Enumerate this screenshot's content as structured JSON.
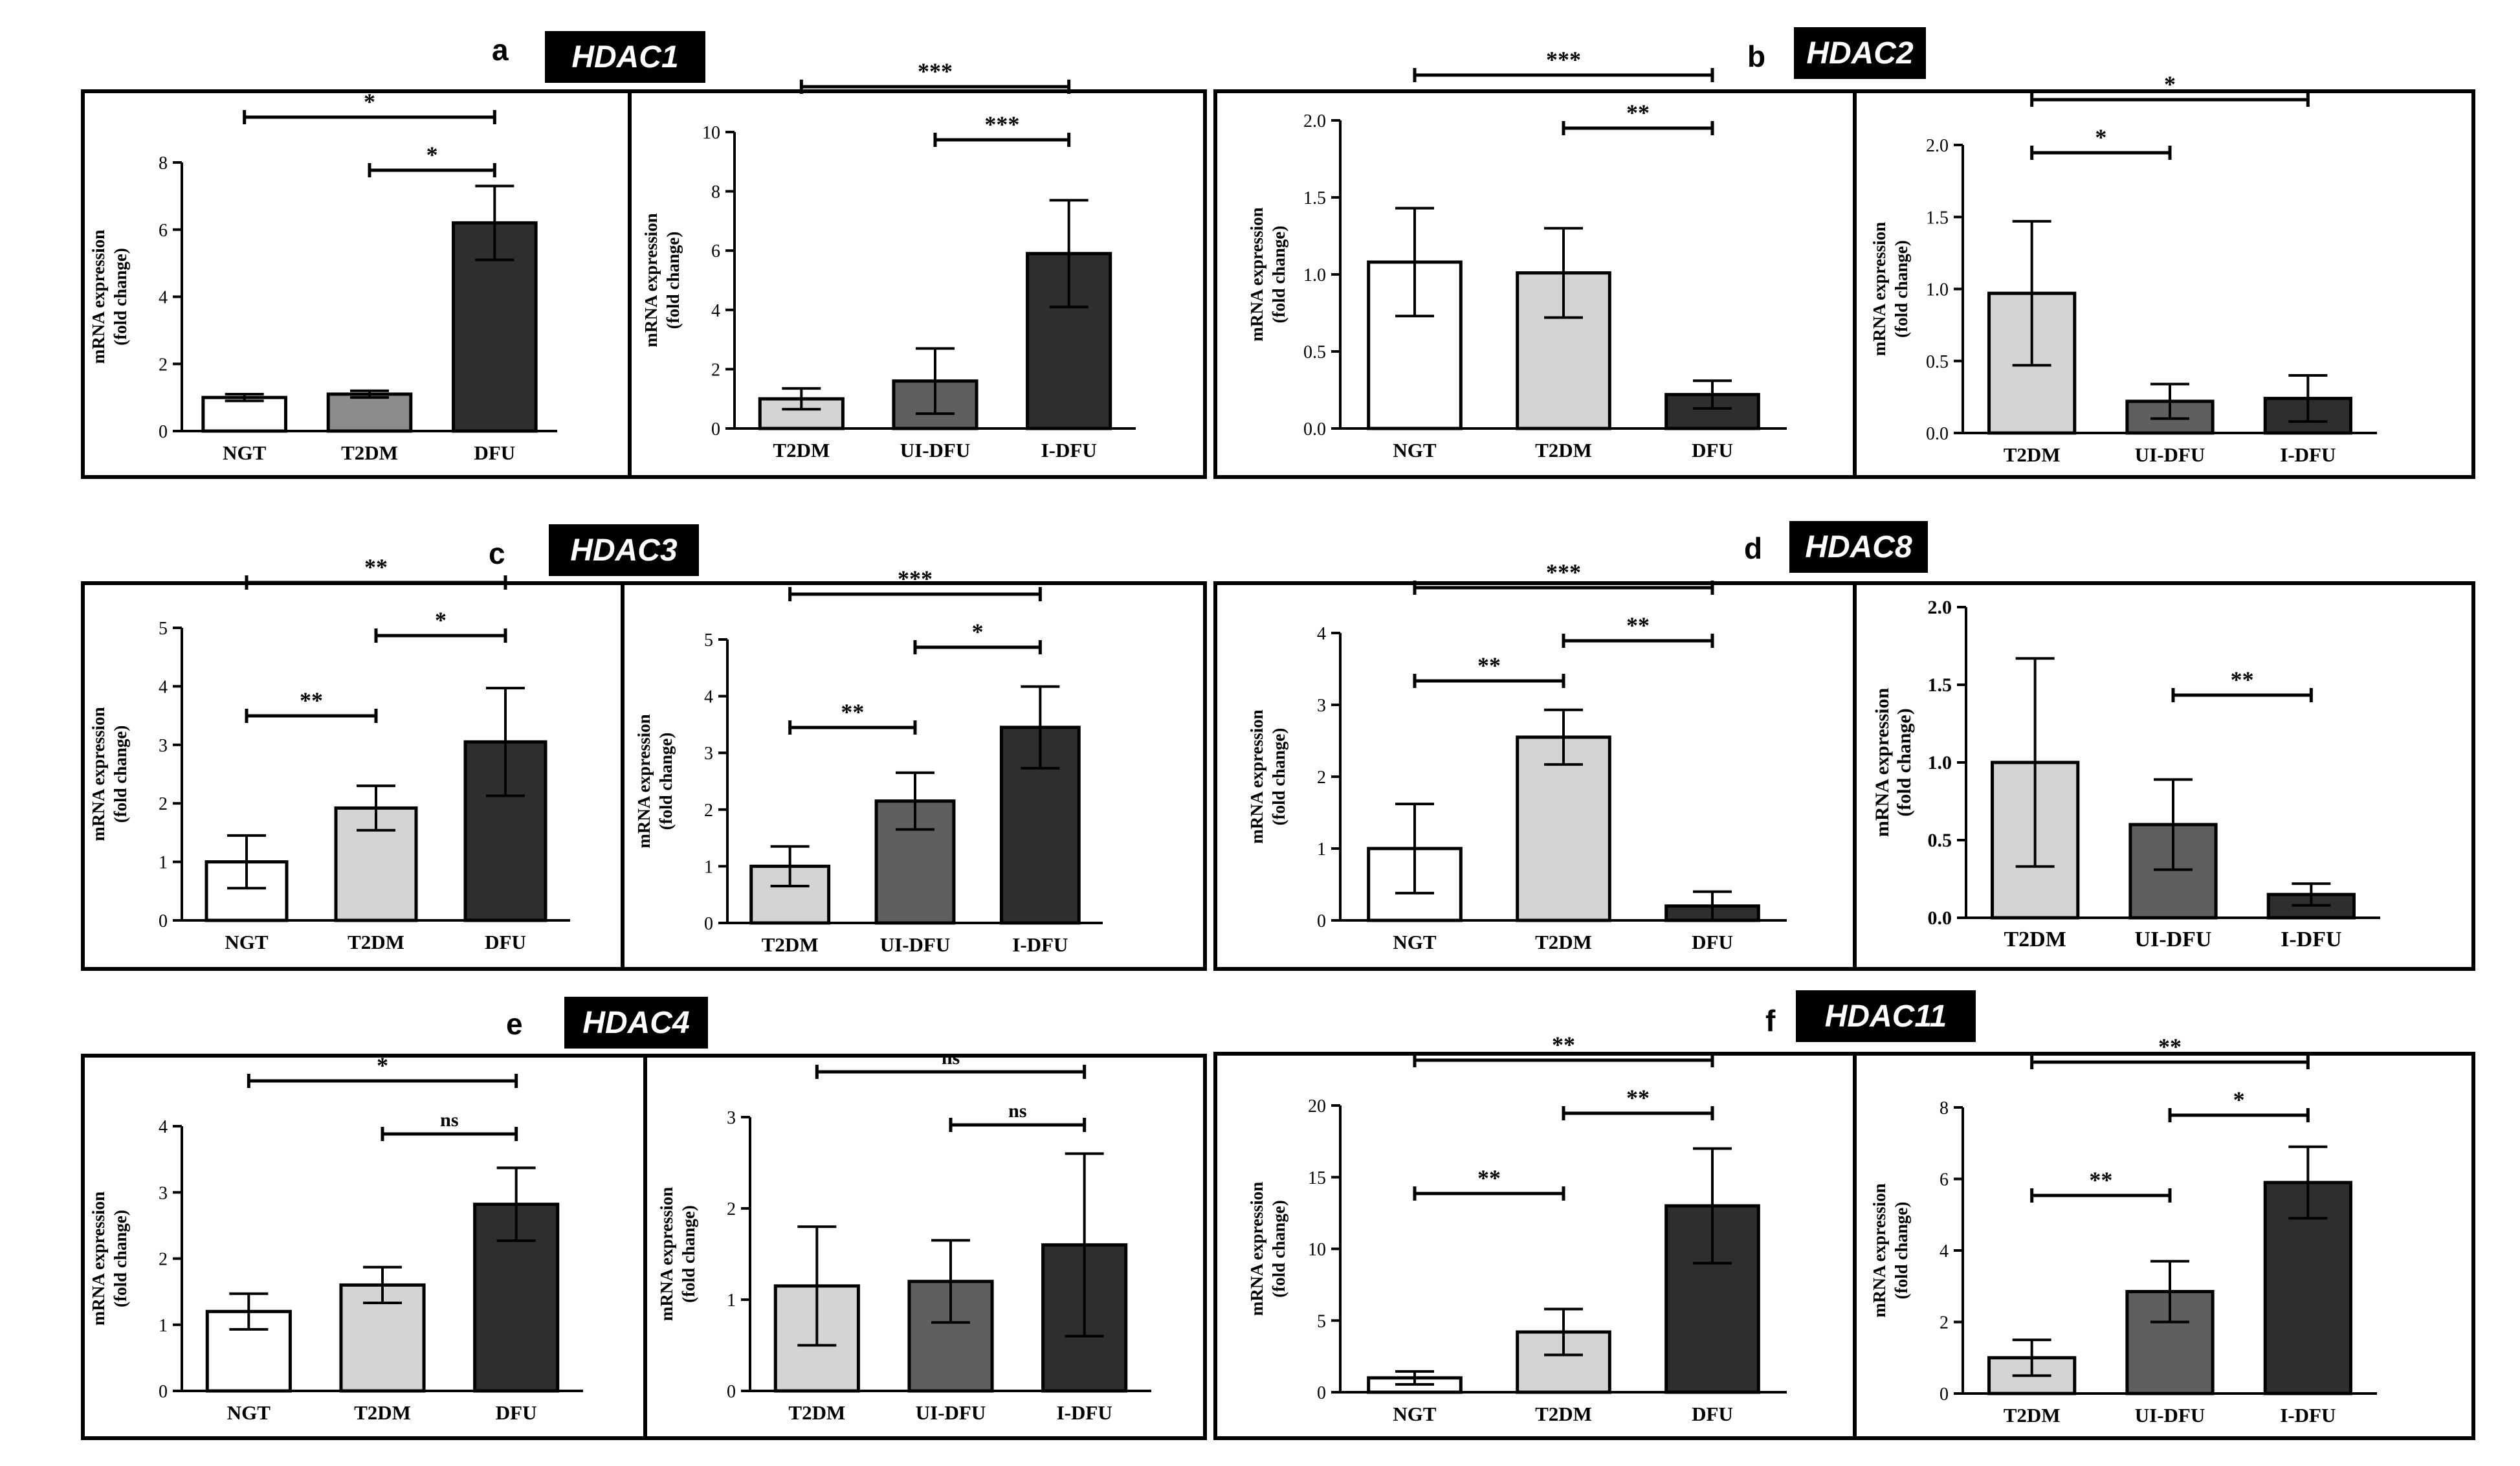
{
  "colors": {
    "white": "#ffffff",
    "light": "#d4d4d4",
    "mid": "#8c8c8c",
    "dark": "#5f5f5f",
    "black": "#2e2e2e"
  },
  "panels": [
    {
      "letter": "a",
      "gene": "HDAC1"
    },
    {
      "letter": "b",
      "gene": "HDAC2"
    },
    {
      "letter": "c",
      "gene": "HDAC3"
    },
    {
      "letter": "d",
      "gene": "HDAC8"
    },
    {
      "letter": "e",
      "gene": "HDAC4"
    },
    {
      "letter": "f",
      "gene": "HDAC11"
    }
  ],
  "chart_data": [
    {
      "id": "a1",
      "type": "bar",
      "ylabel": "mRNA expression",
      "ylabel2": "(fold change)",
      "ylim": [
        0,
        8
      ],
      "yticks": [
        "0",
        "2",
        "4",
        "6",
        "8"
      ],
      "categories": [
        "NGT",
        "T2DM",
        "DFU"
      ],
      "values": [
        1.0,
        1.1,
        6.2
      ],
      "err": [
        0.1,
        0.1,
        1.1
      ],
      "fills": [
        "white",
        "mid",
        "black"
      ],
      "brackets": [
        {
          "from": 0,
          "to": 2,
          "label": "*",
          "level": 0
        },
        {
          "from": 1,
          "to": 2,
          "label": "*",
          "level": 1
        }
      ]
    },
    {
      "id": "a2",
      "type": "bar",
      "ylabel": "mRNA expression",
      "ylabel2": "(fold change)",
      "ylim": [
        0,
        10
      ],
      "yticks": [
        "0",
        "2",
        "4",
        "6",
        "8",
        "10"
      ],
      "categories": [
        "T2DM",
        "UI-DFU",
        "I-DFU"
      ],
      "values": [
        1.0,
        1.6,
        5.9
      ],
      "err": [
        0.35,
        1.1,
        1.8
      ],
      "fills": [
        "light",
        "dark",
        "black"
      ],
      "brackets": [
        {
          "from": 0,
          "to": 2,
          "label": "***",
          "level": 0
        },
        {
          "from": 1,
          "to": 2,
          "label": "***",
          "level": 1
        }
      ]
    },
    {
      "id": "b1",
      "type": "bar",
      "ylabel": "mRNA expression",
      "ylabel2": "(fold change)",
      "ylim": [
        0,
        2.0
      ],
      "yticks": [
        "0.0",
        "0.5",
        "1.0",
        "1.5",
        "2.0"
      ],
      "categories": [
        "NGT",
        "T2DM",
        "DFU"
      ],
      "values": [
        1.08,
        1.01,
        0.22
      ],
      "err": [
        0.35,
        0.29,
        0.09
      ],
      "fills": [
        "white",
        "light",
        "black"
      ],
      "brackets": [
        {
          "from": 0,
          "to": 2,
          "label": "***",
          "level": 0
        },
        {
          "from": 1,
          "to": 2,
          "label": "**",
          "level": 1
        }
      ]
    },
    {
      "id": "b2",
      "type": "bar",
      "ylabel": "mRNA expression",
      "ylabel2": "(fold change)",
      "ylim": [
        0,
        2.0
      ],
      "yticks": [
        "0.0",
        "0.5",
        "1.0",
        "1.5",
        "2.0"
      ],
      "categories": [
        "T2DM",
        "UI-DFU",
        "I-DFU"
      ],
      "values": [
        0.97,
        0.22,
        0.24
      ],
      "err": [
        0.5,
        0.12,
        0.16
      ],
      "fills": [
        "light",
        "dark",
        "black"
      ],
      "brackets": [
        {
          "from": 0,
          "to": 2,
          "label": "*",
          "level": 0
        },
        {
          "from": 0,
          "to": 1,
          "label": "*",
          "level": 1
        }
      ]
    },
    {
      "id": "c1",
      "type": "bar",
      "ylabel": "mRNA expression",
      "ylabel2": "(fold change)",
      "ylim": [
        0,
        5
      ],
      "yticks": [
        "0",
        "1",
        "2",
        "3",
        "4",
        "5"
      ],
      "categories": [
        "NGT",
        "T2DM",
        "DFU"
      ],
      "values": [
        1.0,
        1.92,
        3.05
      ],
      "err": [
        0.45,
        0.38,
        0.92
      ],
      "fills": [
        "white",
        "light",
        "black"
      ],
      "brackets": [
        {
          "from": 0,
          "to": 2,
          "label": "**",
          "level": 0
        },
        {
          "from": 1,
          "to": 2,
          "label": "*",
          "level": 1
        },
        {
          "from": 0,
          "to": 1,
          "label": "**",
          "level": 3
        }
      ]
    },
    {
      "id": "c2",
      "type": "bar",
      "ylabel": "mRNA expression",
      "ylabel2": "(fold change)",
      "ylim": [
        0,
        5
      ],
      "yticks": [
        "0",
        "1",
        "2",
        "3",
        "4",
        "5"
      ],
      "categories": [
        "T2DM",
        "UI-DFU",
        "I-DFU"
      ],
      "values": [
        1.0,
        2.15,
        3.45
      ],
      "err": [
        0.35,
        0.5,
        0.72
      ],
      "fills": [
        "light",
        "dark",
        "black"
      ],
      "brackets": [
        {
          "from": 0,
          "to": 2,
          "label": "***",
          "level": 0
        },
        {
          "from": 1,
          "to": 2,
          "label": "*",
          "level": 1
        },
        {
          "from": 0,
          "to": 1,
          "label": "**",
          "level": 3
        }
      ]
    },
    {
      "id": "d1",
      "type": "bar",
      "ylabel": "mRNA expression",
      "ylabel2": "(fold change)",
      "ylim": [
        0,
        4
      ],
      "yticks": [
        "0",
        "1",
        "2",
        "3",
        "4"
      ],
      "categories": [
        "NGT",
        "T2DM",
        "DFU"
      ],
      "values": [
        1.0,
        2.55,
        0.2
      ],
      "err": [
        0.62,
        0.38,
        0.2
      ],
      "fills": [
        "white",
        "light",
        "black"
      ],
      "brackets": [
        {
          "from": 0,
          "to": 2,
          "label": "***",
          "level": 0
        },
        {
          "from": 1,
          "to": 2,
          "label": "**",
          "level": 1
        },
        {
          "from": 0,
          "to": 1,
          "label": "**",
          "level": 2
        }
      ]
    },
    {
      "id": "d2",
      "type": "bar",
      "ylabel": "mRNA expression",
      "ylabel2": "(fold change)",
      "ylim": [
        0,
        2.0
      ],
      "yticks": [
        "0.0",
        "0.5",
        "1.0",
        "1.5",
        "2.0"
      ],
      "bold": true,
      "categories": [
        "T2DM",
        "UI-DFU",
        "I-DFU"
      ],
      "values": [
        1.0,
        0.6,
        0.15
      ],
      "err": [
        0.67,
        0.29,
        0.07
      ],
      "fills": [
        "light",
        "dark",
        "black"
      ],
      "brackets": [
        {
          "from": 1,
          "to": 2,
          "label": "**",
          "level": 3
        }
      ]
    },
    {
      "id": "e1",
      "type": "bar",
      "ylabel": "mRNA expression",
      "ylabel2": "(fold change)",
      "ylim": [
        0,
        4
      ],
      "yticks": [
        "0",
        "1",
        "2",
        "3",
        "4"
      ],
      "categories": [
        "NGT",
        "T2DM",
        "DFU"
      ],
      "values": [
        1.2,
        1.6,
        2.82
      ],
      "err": [
        0.27,
        0.27,
        0.55
      ],
      "fills": [
        "white",
        "light",
        "black"
      ],
      "brackets": [
        {
          "from": 0,
          "to": 2,
          "label": "*",
          "level": 0
        },
        {
          "from": 1,
          "to": 2,
          "label": "ns",
          "level": 1
        }
      ]
    },
    {
      "id": "e2",
      "type": "bar",
      "ylabel": "mRNA expression",
      "ylabel2": "(fold change)",
      "ylim": [
        0,
        3
      ],
      "yticks": [
        "0",
        "1",
        "2",
        "3"
      ],
      "categories": [
        "T2DM",
        "UI-DFU",
        "I-DFU"
      ],
      "values": [
        1.15,
        1.2,
        1.6
      ],
      "err": [
        0.65,
        0.45,
        1.0
      ],
      "fills": [
        "light",
        "dark",
        "black"
      ],
      "brackets": [
        {
          "from": 0,
          "to": 2,
          "label": "ns",
          "level": 0
        },
        {
          "from": 1,
          "to": 2,
          "label": "ns",
          "level": 1
        }
      ]
    },
    {
      "id": "f1",
      "type": "bar",
      "ylabel": "mRNA expression",
      "ylabel2": "(fold change)",
      "ylim": [
        0,
        20
      ],
      "yticks": [
        "0",
        "5",
        "10",
        "15",
        "20"
      ],
      "categories": [
        "NGT",
        "T2DM",
        "DFU"
      ],
      "values": [
        1.0,
        4.2,
        13.0
      ],
      "err": [
        0.45,
        1.6,
        4.0
      ],
      "fills": [
        "white",
        "light",
        "black"
      ],
      "brackets": [
        {
          "from": 0,
          "to": 2,
          "label": "**",
          "level": 0
        },
        {
          "from": 1,
          "to": 2,
          "label": "**",
          "level": 1
        },
        {
          "from": 0,
          "to": 1,
          "label": "**",
          "level": 3
        }
      ]
    },
    {
      "id": "f2",
      "type": "bar",
      "ylabel": "mRNA expression",
      "ylabel2": "(fold change)",
      "ylim": [
        0,
        8
      ],
      "yticks": [
        "0",
        "2",
        "4",
        "6",
        "8"
      ],
      "categories": [
        "T2DM",
        "UI-DFU",
        "I-DFU"
      ],
      "values": [
        1.0,
        2.85,
        5.9
      ],
      "err": [
        0.5,
        0.85,
        1.0
      ],
      "fills": [
        "light",
        "dark",
        "black"
      ],
      "brackets": [
        {
          "from": 0,
          "to": 2,
          "label": "**",
          "level": 0
        },
        {
          "from": 1,
          "to": 2,
          "label": "*",
          "level": 1
        },
        {
          "from": 0,
          "to": 1,
          "label": "**",
          "level": 3
        }
      ]
    }
  ]
}
